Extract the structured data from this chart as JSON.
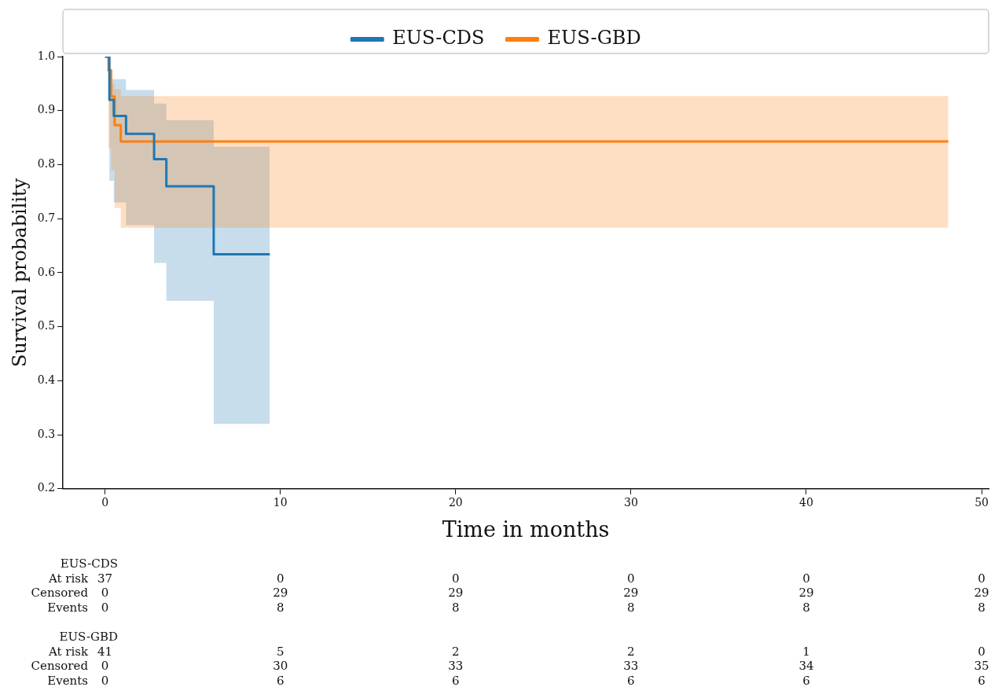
{
  "chart_data": {
    "type": "step",
    "xlabel": "Time in months",
    "ylabel": "Survival probability",
    "xlim": [
      -2.4,
      50.4
    ],
    "xticks": [
      0,
      10,
      20,
      30,
      40,
      50
    ],
    "ylim": [
      0.2,
      1.0
    ],
    "yticks": [
      0.2,
      0.3,
      0.4,
      0.5,
      0.6,
      0.7,
      0.8,
      0.9,
      {
        "value": 1.0,
        "label": "1.0"
      }
    ],
    "grid": false,
    "legend": "top",
    "marker": "none",
    "line_style": "solid",
    "series": [
      {
        "name": "EUS-CDS",
        "color": "#1f77b4",
        "x": [
          0,
          0.25,
          0.5,
          1.2,
          2.8,
          3.5,
          6.2,
          9.4
        ],
        "values": [
          1.0,
          0.92,
          0.89,
          0.857,
          0.81,
          0.76,
          0.634,
          0.634
        ],
        "upper": [
          1.0,
          0.958,
          0.958,
          0.938,
          0.913,
          0.882,
          0.833,
          0.833
        ],
        "lower": [
          1.0,
          0.77,
          0.73,
          0.688,
          0.618,
          0.548,
          0.32,
          0.32
        ]
      },
      {
        "name": "EUS-GBD",
        "color": "#ff7f0e",
        "x": [
          0,
          0.2,
          0.35,
          0.55,
          0.9,
          48.1
        ],
        "values": [
          1.0,
          0.975,
          0.926,
          0.873,
          0.843,
          0.843
        ],
        "upper": [
          1.0,
          0.975,
          0.95,
          0.94,
          0.927,
          0.927
        ],
        "lower": [
          1.0,
          0.83,
          0.79,
          0.72,
          0.683,
          0.683
        ]
      }
    ],
    "annotations": [
      "EUS-CDS",
      "At risk",
      "37",
      "0",
      "0",
      "0",
      "0",
      "0",
      "Censored",
      "0",
      "29",
      "29",
      "29",
      "29",
      "29",
      "Events",
      "0",
      "8",
      "8",
      "8",
      "8",
      "8",
      "EUS-GBD",
      "At risk",
      "41",
      "5",
      "2",
      "2",
      "1",
      "0",
      "Censored",
      "0",
      "30",
      "33",
      "33",
      "34",
      "35",
      "Events",
      "0",
      "6",
      "6",
      "6",
      "6",
      "6"
    ]
  }
}
